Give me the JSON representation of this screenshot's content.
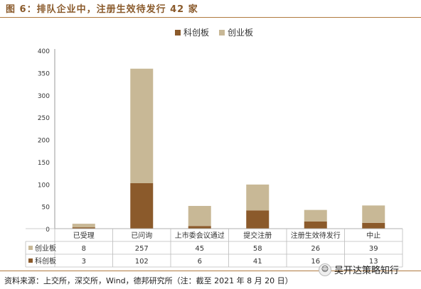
{
  "figure_title": "图 6：排队企业中，注册生效待发行 42 家",
  "source_note": "资料来源：上交所，深交所，Wind，德邦研究所（注：截至 2021 年 8 月 20 日）",
  "watermark": "吴开达策略知行",
  "colors": {
    "title": "#8a5a2b",
    "kechuang": "#8b5a2b",
    "chuangye": "#c8b896",
    "rule": "#b07a3f"
  },
  "chart_data": {
    "type": "bar",
    "stacked": true,
    "categories": [
      "已受理",
      "已问询",
      "上市委会议通过",
      "提交注册",
      "注册生效待发行",
      "中止"
    ],
    "series": [
      {
        "name": "科创板",
        "values": [
          3,
          102,
          6,
          41,
          16,
          13
        ]
      },
      {
        "name": "创业板",
        "values": [
          8,
          257,
          45,
          58,
          26,
          39
        ]
      }
    ],
    "ylim": [
      0,
      400
    ],
    "yticks": [
      "0",
      "50",
      "100",
      "150",
      "200",
      "250",
      "300",
      "350",
      "400"
    ],
    "legend": [
      "科创板",
      "创业板"
    ],
    "legend_position": "top-center",
    "data_table": true
  }
}
